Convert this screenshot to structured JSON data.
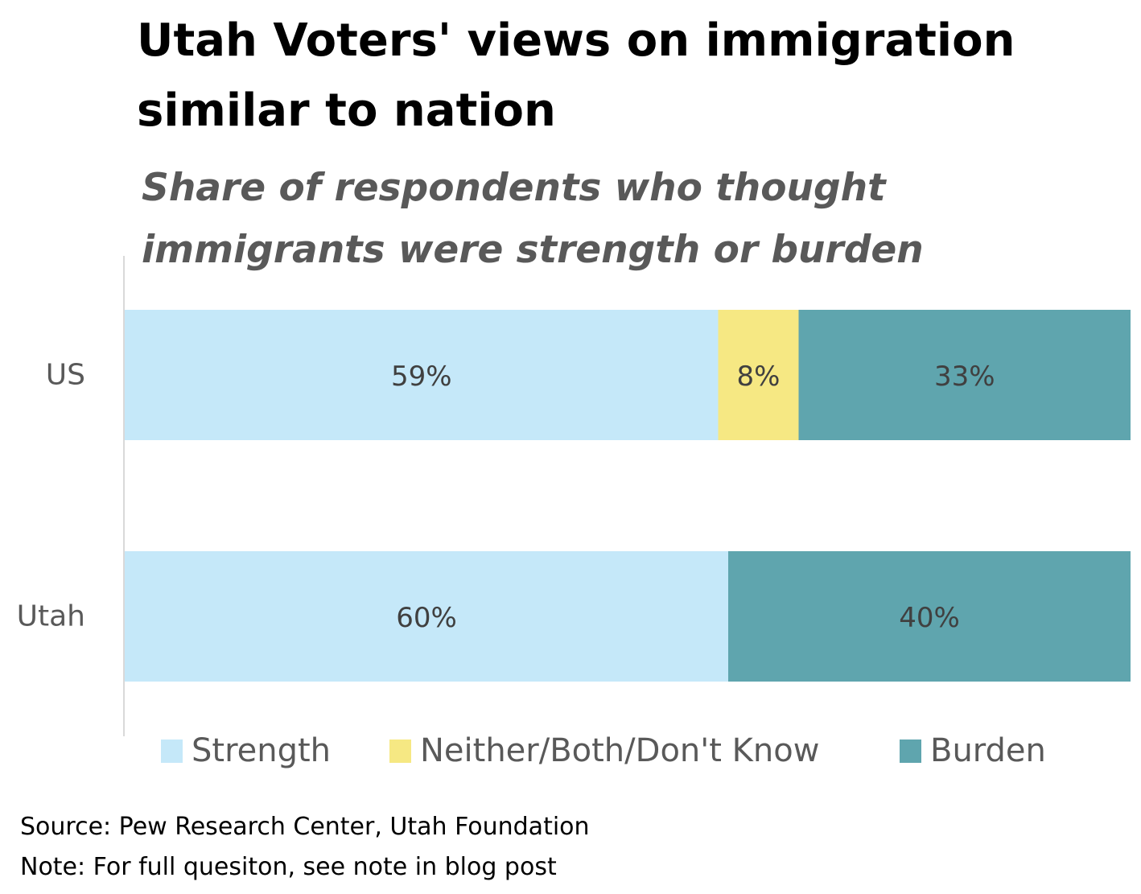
{
  "chart_data": {
    "type": "bar",
    "orientation": "horizontal",
    "stacked": true,
    "title": "Utah Voters' views on immigration similar to nation",
    "subtitle": "Share of respondents who thought immigrants were strength or burden",
    "categories": [
      "US",
      "Utah"
    ],
    "series": [
      {
        "name": "Strength",
        "values": [
          59,
          60
        ],
        "labels": [
          "59%",
          "60%"
        ],
        "color": "#c5e8f9"
      },
      {
        "name": "Neither/Both/Don't Know",
        "values": [
          8,
          0
        ],
        "labels": [
          "8%",
          ""
        ],
        "color": "#f6e883"
      },
      {
        "name": "Burden",
        "values": [
          33,
          40
        ],
        "labels": [
          "33%",
          "40%"
        ],
        "color": "#5fa5ae"
      }
    ],
    "xlim": [
      0,
      100
    ],
    "unit": "%",
    "legend": "bottom",
    "grid": false
  },
  "footer": {
    "source": "Source: Pew Research Center, Utah Foundation",
    "note": "Note: For full quesiton, see note in blog post"
  }
}
